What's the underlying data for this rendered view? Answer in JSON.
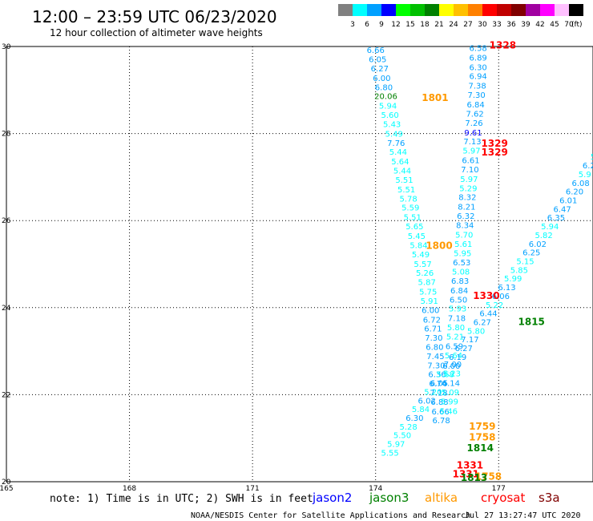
{
  "title": "12:00 – 23:59 UTC 06/23/2020",
  "subtitle": "12 hour collection of altimeter wave heights",
  "colorbar": {
    "labels": [
      "3",
      "6",
      "9",
      "12",
      "15",
      "18",
      "21",
      "24",
      "27",
      "30",
      "33",
      "36",
      "39",
      "42",
      "45",
      "70"
    ],
    "unit": "(ft)",
    "colors": [
      "#808080",
      "#00ffff",
      "#00a0ff",
      "#0000ff",
      "#00ff00",
      "#00c000",
      "#008000",
      "#ffff00",
      "#ffc000",
      "#ff8000",
      "#ff0000",
      "#c00000",
      "#800000",
      "#a000a0",
      "#ff00ff",
      "#ffc0ff",
      "#000000"
    ]
  },
  "note": "note:  1) Time is in UTC; 2) SWH is in feet",
  "legend": [
    {
      "name": "jason2",
      "color": "#0000ff"
    },
    {
      "name": "jason3",
      "color": "#008000"
    },
    {
      "name": "altika",
      "color": "#ff9900"
    },
    {
      "name": "cryosat",
      "color": "#ff0000"
    },
    {
      "name": "s3a",
      "color": "#800000"
    }
  ],
  "footer_left": "NOAA/NESDIS Center for Satellite Applications and Research",
  "footer_right": "Jul 27 13:27:47 UTC 2020",
  "chart_data": {
    "type": "scatter",
    "xlim": [
      165,
      179.3
    ],
    "ylim": [
      20,
      30
    ],
    "x_ticks": [
      {
        "value": 165,
        "label": "165"
      },
      {
        "value": 168,
        "label": "168"
      },
      {
        "value": 171,
        "label": "171"
      },
      {
        "value": 174,
        "label": "174"
      },
      {
        "value": 177,
        "label": "177"
      }
    ],
    "y_ticks": [
      {
        "value": 20,
        "label": "20"
      },
      {
        "value": 22,
        "label": "22"
      },
      {
        "value": 24,
        "label": "24"
      },
      {
        "value": 26,
        "label": "26"
      },
      {
        "value": 28,
        "label": "28"
      },
      {
        "value": 30,
        "label": "30"
      }
    ],
    "grid": true,
    "series": [
      {
        "name": "track_a",
        "points": [
          [
            174.0,
            29.85,
            "6.66"
          ],
          [
            174.05,
            29.64,
            "6.05"
          ],
          [
            174.1,
            29.43,
            "6.27"
          ],
          [
            174.15,
            29.21,
            "6.00"
          ],
          [
            174.2,
            29.0,
            "6.80"
          ],
          [
            174.25,
            28.79,
            "20.06"
          ],
          [
            174.3,
            28.57,
            "5.94"
          ],
          [
            174.35,
            28.36,
            "5.60"
          ],
          [
            174.4,
            28.15,
            "5.43"
          ],
          [
            174.45,
            27.93,
            "5.49"
          ],
          [
            174.5,
            27.72,
            "7.76"
          ],
          [
            174.55,
            27.51,
            "5.44"
          ],
          [
            174.6,
            27.29,
            "5.64"
          ],
          [
            174.65,
            27.08,
            "5.44"
          ],
          [
            174.7,
            26.87,
            "5.51"
          ],
          [
            174.75,
            26.65,
            "5.51"
          ],
          [
            174.8,
            26.44,
            "5.78"
          ],
          [
            174.85,
            26.23,
            "5.59"
          ],
          [
            174.9,
            26.01,
            "5.51"
          ],
          [
            174.95,
            25.8,
            "5.65"
          ],
          [
            175.0,
            25.58,
            "5.45"
          ],
          [
            175.05,
            25.37,
            "5.84"
          ],
          [
            175.1,
            25.16,
            "5.49"
          ],
          [
            175.15,
            24.94,
            "5.57"
          ],
          [
            175.2,
            24.73,
            "5.26"
          ],
          [
            175.25,
            24.52,
            "5.87"
          ],
          [
            175.28,
            24.3,
            "5.75"
          ],
          [
            175.31,
            24.09,
            "5.91"
          ],
          [
            175.34,
            23.88,
            "6.00"
          ],
          [
            175.37,
            23.66,
            "6.72"
          ],
          [
            175.4,
            23.45,
            "6.71"
          ],
          [
            175.42,
            23.24,
            "7.30"
          ],
          [
            175.44,
            23.03,
            "6.80"
          ],
          [
            175.46,
            22.82,
            "7.45"
          ],
          [
            175.48,
            22.61,
            "7.30"
          ],
          [
            175.5,
            22.4,
            "6.36"
          ],
          [
            175.52,
            22.19,
            "6.74"
          ],
          [
            175.54,
            21.98,
            "7.18"
          ],
          [
            175.56,
            21.77,
            "6.88"
          ],
          [
            175.58,
            21.55,
            "6.66"
          ],
          [
            175.6,
            21.34,
            "6.78"
          ]
        ]
      },
      {
        "name": "track_b",
        "points": [
          [
            176.5,
            29.9,
            "6.58"
          ],
          [
            176.5,
            29.68,
            "6.89"
          ],
          [
            176.5,
            29.46,
            "6.30"
          ],
          [
            176.5,
            29.25,
            "6.94"
          ],
          [
            176.48,
            29.03,
            "7.38"
          ],
          [
            176.46,
            28.82,
            "7.30"
          ],
          [
            176.44,
            28.6,
            "6.84"
          ],
          [
            176.42,
            28.39,
            "7.62"
          ],
          [
            176.4,
            28.18,
            "7.26"
          ],
          [
            176.38,
            27.96,
            "9.61"
          ],
          [
            176.36,
            27.75,
            "7.13"
          ],
          [
            176.34,
            27.54,
            "5.97"
          ],
          [
            176.32,
            27.32,
            "6.61"
          ],
          [
            176.3,
            27.11,
            "7.10"
          ],
          [
            176.28,
            26.89,
            "5.97"
          ],
          [
            176.26,
            26.68,
            "5.29"
          ],
          [
            176.24,
            26.47,
            "8.32"
          ],
          [
            176.22,
            26.25,
            "8.21"
          ],
          [
            176.2,
            26.04,
            "6.32"
          ],
          [
            176.18,
            25.83,
            "8.34"
          ],
          [
            176.16,
            25.61,
            "5.70"
          ],
          [
            176.14,
            25.4,
            "5.61"
          ],
          [
            176.12,
            25.18,
            "5.95"
          ],
          [
            176.1,
            24.97,
            "6.53"
          ],
          [
            176.08,
            24.76,
            "5.08"
          ],
          [
            176.06,
            24.55,
            "6.83"
          ],
          [
            176.04,
            24.33,
            "6.84"
          ],
          [
            176.02,
            24.12,
            "6.50"
          ],
          [
            176.0,
            23.91,
            "5.93"
          ],
          [
            175.98,
            23.69,
            "7.18"
          ],
          [
            175.96,
            23.48,
            "5.80"
          ],
          [
            175.94,
            23.27,
            "5.21"
          ],
          [
            175.92,
            23.05,
            "6.59"
          ],
          [
            175.9,
            22.84,
            "5.64"
          ],
          [
            175.88,
            22.63,
            "7.00"
          ],
          [
            175.86,
            22.42,
            "5.23"
          ],
          [
            175.84,
            22.2,
            "6.14"
          ],
          [
            175.82,
            21.99,
            "5.09"
          ],
          [
            175.8,
            21.78,
            "5.99"
          ],
          [
            175.78,
            21.56,
            "5.46"
          ]
        ]
      },
      {
        "name": "track_c",
        "points": [
          [
            179.3,
            27.4,
            "5"
          ],
          [
            179.2,
            27.2,
            "6.2"
          ],
          [
            179.1,
            27.0,
            "5.9"
          ],
          [
            179.0,
            26.8,
            "6.08"
          ],
          [
            178.85,
            26.6,
            "6.20"
          ],
          [
            178.7,
            26.4,
            "6.01"
          ],
          [
            178.55,
            26.2,
            "6.47"
          ],
          [
            178.4,
            26.0,
            "6.35"
          ],
          [
            178.25,
            25.8,
            "5.94"
          ],
          [
            178.1,
            25.6,
            "5.82"
          ],
          [
            177.95,
            25.4,
            "6.02"
          ],
          [
            177.8,
            25.2,
            "6.25"
          ],
          [
            177.65,
            25.0,
            "5.15"
          ],
          [
            177.5,
            24.8,
            "5.85"
          ],
          [
            177.35,
            24.6,
            "5.99"
          ],
          [
            177.2,
            24.4,
            "6.13"
          ],
          [
            177.05,
            24.2,
            "6.06"
          ],
          [
            176.9,
            24.0,
            "5.22"
          ],
          [
            176.75,
            23.8,
            "6.44"
          ],
          [
            176.6,
            23.6,
            "6.27"
          ],
          [
            176.45,
            23.4,
            "5.80"
          ],
          [
            176.3,
            23.2,
            "7.17"
          ],
          [
            176.15,
            23.0,
            "6.27"
          ],
          [
            176.0,
            22.8,
            "6.19"
          ],
          [
            175.85,
            22.6,
            "6.00"
          ],
          [
            175.7,
            22.4,
            "5.68"
          ],
          [
            175.55,
            22.2,
            "6.05"
          ],
          [
            175.4,
            22.0,
            "5.20"
          ],
          [
            175.25,
            21.8,
            "6.02"
          ],
          [
            175.1,
            21.6,
            "5.84"
          ],
          [
            174.95,
            21.4,
            "6.30"
          ],
          [
            174.8,
            21.2,
            "5.28"
          ],
          [
            174.65,
            21.0,
            "5.50"
          ],
          [
            174.5,
            20.8,
            "5.97"
          ],
          [
            174.35,
            20.6,
            "5.55"
          ]
        ]
      }
    ],
    "pass_labels": [
      {
        "x": 177.1,
        "y": 29.95,
        "text": "1328",
        "color": "#ff0000"
      },
      {
        "x": 175.45,
        "y": 28.75,
        "text": "1801",
        "color": "#ff9900"
      },
      {
        "x": 176.9,
        "y": 27.7,
        "text": "1329",
        "color": "#ff0000"
      },
      {
        "x": 176.9,
        "y": 27.5,
        "text": "1329",
        "color": "#ff0000"
      },
      {
        "x": 175.55,
        "y": 25.35,
        "text": "1800",
        "color": "#ff9900"
      },
      {
        "x": 176.7,
        "y": 24.2,
        "text": "1330",
        "color": "#ff0000"
      },
      {
        "x": 177.8,
        "y": 23.6,
        "text": "1815",
        "color": "#008000"
      },
      {
        "x": 176.6,
        "y": 21.2,
        "text": "1759",
        "color": "#ff9900"
      },
      {
        "x": 176.6,
        "y": 20.95,
        "text": "1758",
        "color": "#ff9900"
      },
      {
        "x": 176.55,
        "y": 20.7,
        "text": "1814",
        "color": "#008000"
      },
      {
        "x": 176.3,
        "y": 20.3,
        "text": "1331",
        "color": "#ff0000"
      },
      {
        "x": 176.2,
        "y": 20.1,
        "text": "1331",
        "color": "#ff0000"
      },
      {
        "x": 176.75,
        "y": 20.05,
        "text": "1758",
        "color": "#ff9900"
      },
      {
        "x": 176.4,
        "y": 20.02,
        "text": "1813",
        "color": "#008000"
      }
    ]
  }
}
